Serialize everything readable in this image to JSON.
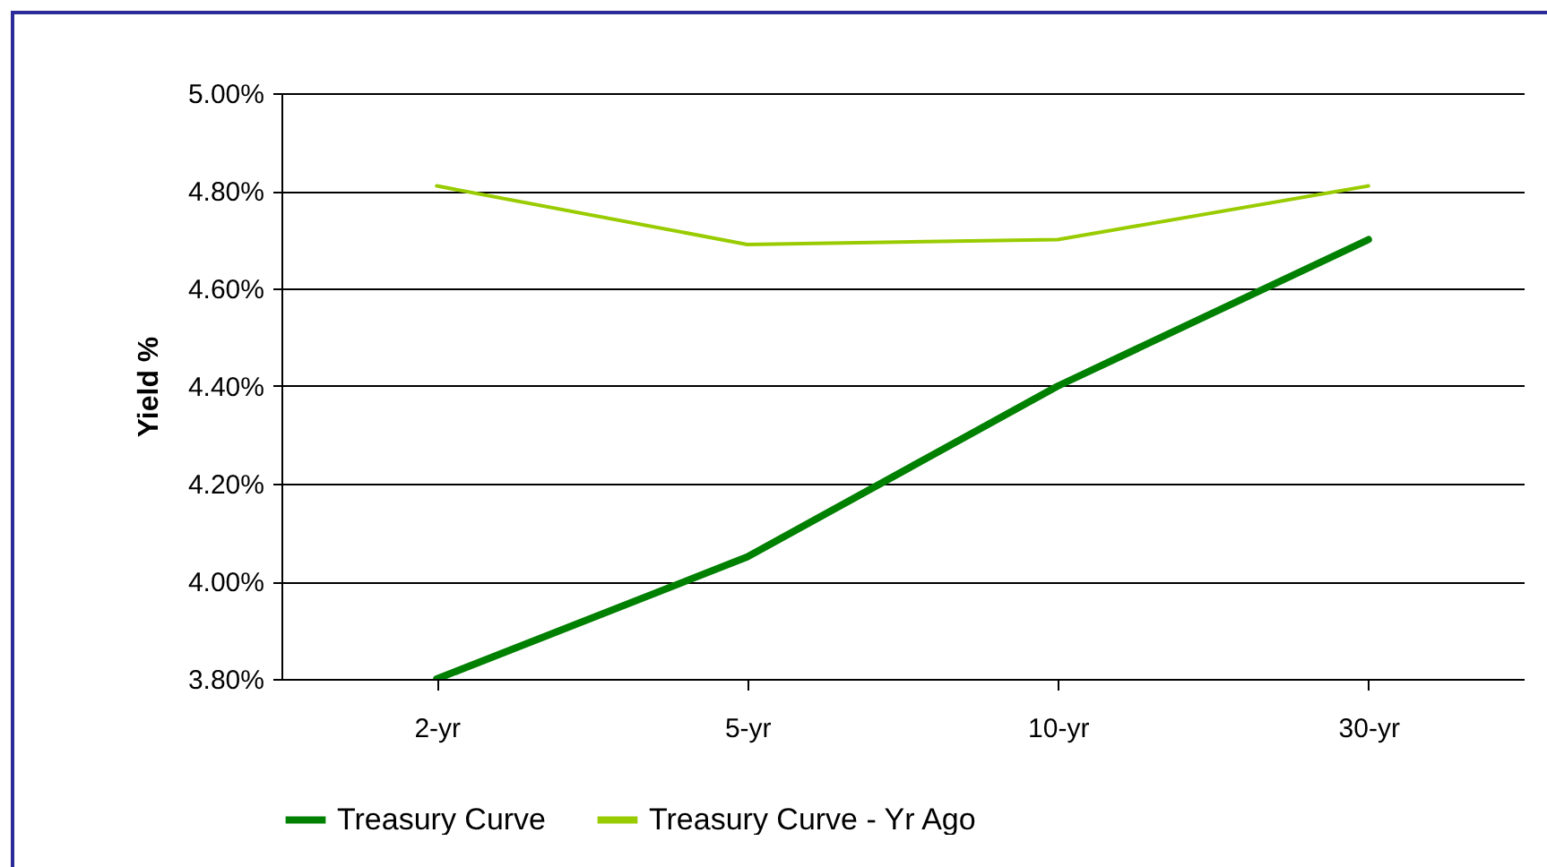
{
  "chart_data": {
    "type": "line",
    "ylabel": "Yield %",
    "categories": [
      "2-yr",
      "5-yr",
      "10-yr",
      "30-yr"
    ],
    "series": [
      {
        "name": "Treasury Curve",
        "color": "#008000",
        "values": [
          3.8,
          4.05,
          4.4,
          4.7
        ]
      },
      {
        "name": "Treasury Curve - Yr Ago",
        "color": "#99cc00",
        "values": [
          4.81,
          4.69,
          4.7,
          4.81
        ]
      }
    ],
    "ylim": [
      3.8,
      5.0
    ],
    "yticks": [
      {
        "value": 3.8,
        "label": "3.80%"
      },
      {
        "value": 4.0,
        "label": "4.00%"
      },
      {
        "value": 4.2,
        "label": "4.20%"
      },
      {
        "value": 4.4,
        "label": "4.40%"
      },
      {
        "value": 4.6,
        "label": "4.60%"
      },
      {
        "value": 4.8,
        "label": "4.80%"
      },
      {
        "value": 5.0,
        "label": "5.00%"
      }
    ],
    "grid": "y",
    "legend": "bottom"
  }
}
